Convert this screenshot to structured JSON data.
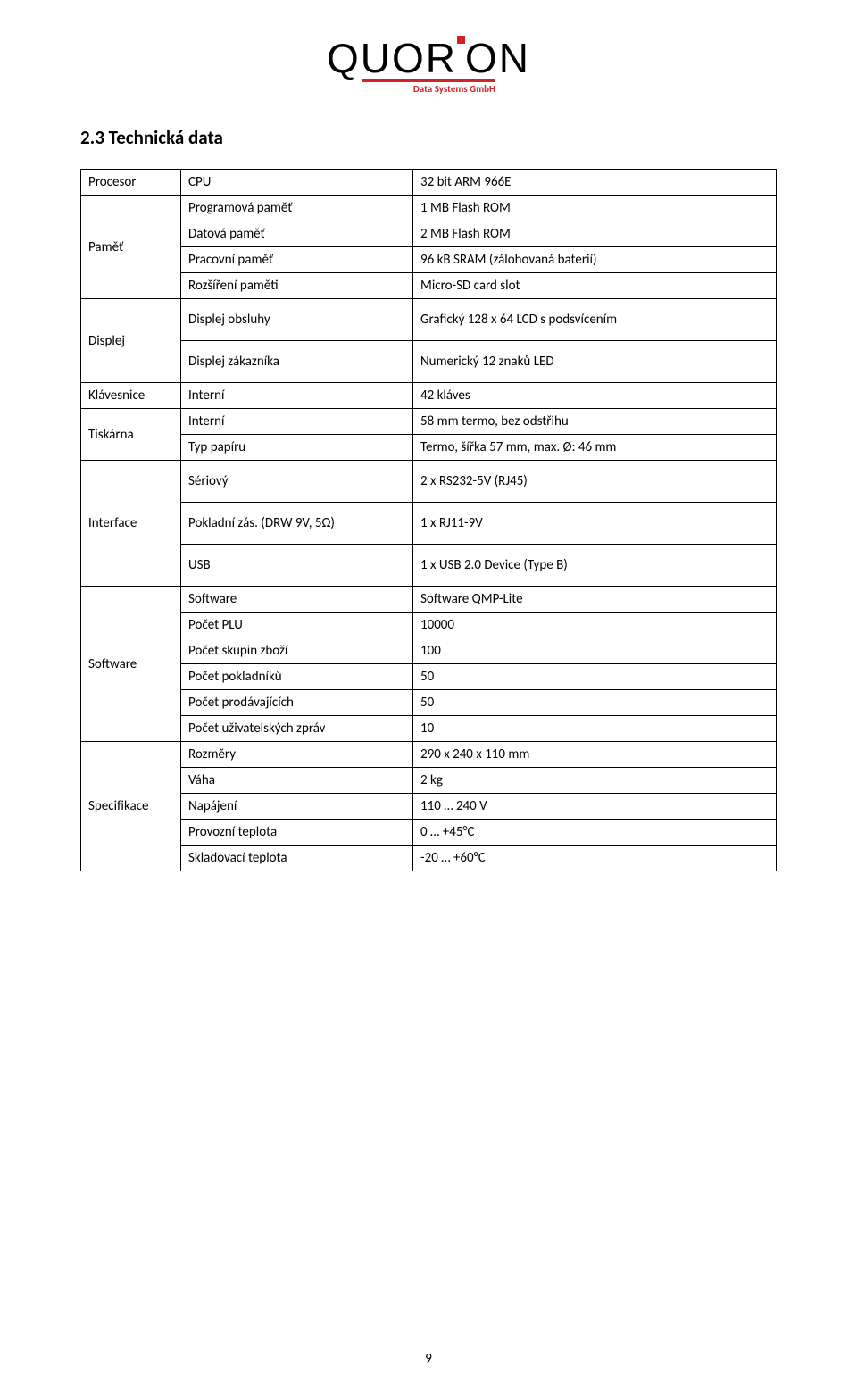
{
  "logo": {
    "text_part1": "QUOR",
    "text_part2": "ON",
    "sub": "Data Systems GmbH"
  },
  "section_title": "2.3 Technická data",
  "table": {
    "groups": [
      {
        "label": "Procesor",
        "rowspan": 1,
        "rows": [
          [
            "CPU",
            "32 bit ARM 966E"
          ]
        ]
      },
      {
        "label": "Paměť",
        "rowspan": 4,
        "rows": [
          [
            "Programová paměť",
            "1 MB Flash ROM"
          ],
          [
            "Datová paměť",
            "2 MB Flash ROM"
          ],
          [
            "Pracovní paměť",
            "96 kB SRAM (zálohovaná baterií)"
          ],
          [
            "Rozšíření paměti",
            "Micro-SD card slot"
          ]
        ]
      },
      {
        "label": "Displej",
        "rowspan": 2,
        "rows": [
          [
            "Displej obsluhy",
            "Grafický 128 x 64 LCD s podsvícením"
          ],
          [
            "Displej zákazníka",
            "Numerický 12 znaků LED"
          ]
        ],
        "tall": true
      },
      {
        "label": "Klávesnice",
        "rowspan": 1,
        "rows": [
          [
            "Interní",
            "42 kláves"
          ]
        ]
      },
      {
        "label": "Tiskárna",
        "rowspan": 2,
        "rows": [
          [
            "Interní",
            "58 mm termo, bez odstřihu"
          ],
          [
            "Typ papíru",
            "Termo, šířka 57 mm, max. Ø: 46 mm"
          ]
        ]
      },
      {
        "label": "Interface",
        "rowspan": 3,
        "rows": [
          [
            "Sériový",
            "2 x RS232-5V (RJ45)"
          ],
          [
            "Pokladní zás. (DRW 9V, 5Ω)",
            "1 x RJ11-9V"
          ],
          [
            "USB",
            "1 x USB 2.0 Device (Type B)"
          ]
        ],
        "tall": true
      },
      {
        "label": "Software",
        "rowspan": 6,
        "rows": [
          [
            "Software",
            "Software QMP-Lite"
          ],
          [
            "Počet PLU",
            "10000"
          ],
          [
            "Počet skupin zboží",
            "100"
          ],
          [
            "Počet pokladníků",
            "50"
          ],
          [
            "Počet prodávajících",
            "50"
          ],
          [
            "Počet uživatelských zpráv",
            "10"
          ]
        ]
      },
      {
        "label": "Specifikace",
        "rowspan": 5,
        "rows": [
          [
            "Rozměry",
            "290 x 240 x 110 mm"
          ],
          [
            "Váha",
            "2 kg"
          ],
          [
            "Napájení",
            "110 … 240 V"
          ],
          [
            "Provozní teplota",
            " 0 … +45°C"
          ],
          [
            "Skladovací teplota",
            "-20 … +60°C"
          ]
        ]
      }
    ]
  },
  "page_number": "9",
  "colors": {
    "brand_red": "#d2232a",
    "text": "#000000",
    "bg": "#ffffff"
  }
}
